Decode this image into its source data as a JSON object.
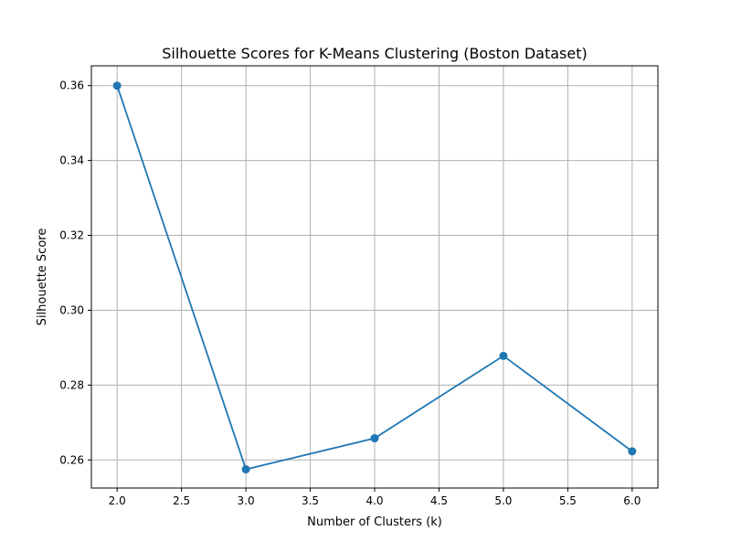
{
  "chart_data": {
    "type": "line",
    "title": "Silhouette Scores for K-Means Clustering (Boston Dataset)",
    "xlabel": "Number of Clusters (k)",
    "ylabel": "Silhouette Score",
    "x": [
      2,
      3,
      4,
      5,
      6
    ],
    "series": [
      {
        "values": [
          0.36,
          0.2575,
          0.2658,
          0.2878,
          0.2623
        ],
        "color": "#1f77b4",
        "marker": "circle"
      }
    ],
    "xlim": [
      1.8,
      6.2
    ],
    "ylim": [
      0.2525,
      0.3653
    ],
    "x_ticks": [
      2.0,
      2.5,
      3.0,
      3.5,
      4.0,
      4.5,
      5.0,
      5.5,
      6.0
    ],
    "x_tick_labels": [
      "2.0",
      "2.5",
      "3.0",
      "3.5",
      "4.0",
      "4.5",
      "5.0",
      "5.5",
      "6.0"
    ],
    "y_ticks": [
      0.26,
      0.28,
      0.3,
      0.32,
      0.34,
      0.36
    ],
    "y_tick_labels": [
      "0.26",
      "0.28",
      "0.30",
      "0.32",
      "0.34",
      "0.36"
    ],
    "grid": true,
    "grid_color": "#b0b0b0",
    "legend": false
  }
}
